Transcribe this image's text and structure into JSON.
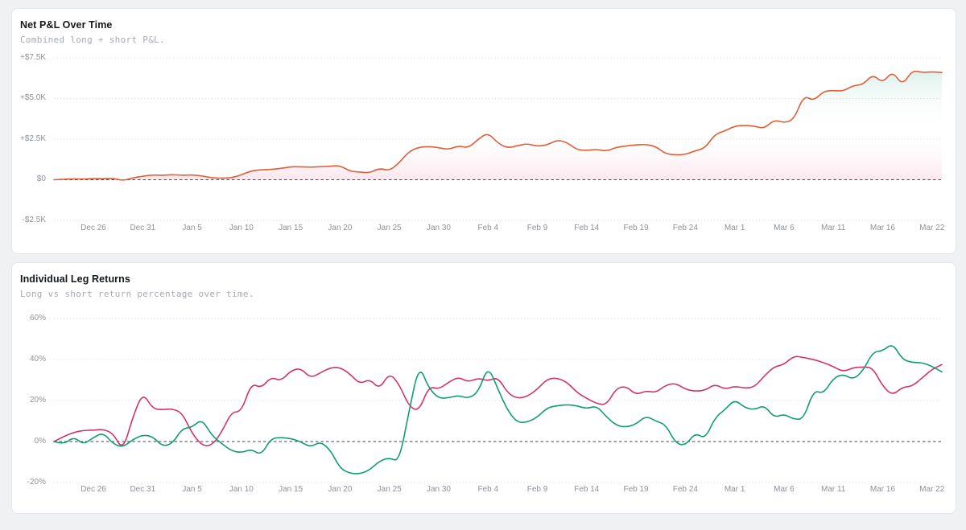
{
  "chart_data": [
    {
      "type": "area",
      "title": "Net P&L Over Time",
      "subtitle": "Combined long + short P&L.",
      "grid": "dotted-horizontal",
      "legend_position": "none",
      "zero_line": "dashed",
      "n_points": 91,
      "x_start": "Dec 22",
      "x_end": "Mar 23",
      "ylim": [
        -2500,
        7500
      ],
      "y_ticks": [
        {
          "label": "+$7.5K",
          "value": 7500
        },
        {
          "label": "+$5.0K",
          "value": 5000
        },
        {
          "label": "+$2.5K",
          "value": 2500
        },
        {
          "label": "$0",
          "value": 0
        },
        {
          "label": "-$2.5K",
          "value": -2500
        }
      ],
      "x_ticks": [
        {
          "label": "Dec 26",
          "index": 4
        },
        {
          "label": "Dec 31",
          "index": 9
        },
        {
          "label": "Jan 5",
          "index": 14
        },
        {
          "label": "Jan 10",
          "index": 19
        },
        {
          "label": "Jan 15",
          "index": 24
        },
        {
          "label": "Jan 20",
          "index": 29
        },
        {
          "label": "Jan 25",
          "index": 34
        },
        {
          "label": "Jan 30",
          "index": 39
        },
        {
          "label": "Feb 4",
          "index": 44
        },
        {
          "label": "Feb 9",
          "index": 49
        },
        {
          "label": "Feb 14",
          "index": 54
        },
        {
          "label": "Feb 19",
          "index": 59
        },
        {
          "label": "Feb 24",
          "index": 64
        },
        {
          "label": "Mar 1",
          "index": 69
        },
        {
          "label": "Mar 6",
          "index": 74
        },
        {
          "label": "Mar 11",
          "index": 79
        },
        {
          "label": "Mar 16",
          "index": 84
        },
        {
          "label": "Mar 22",
          "index": 89
        }
      ],
      "fill": {
        "top": "#0f9d70",
        "top_opacity": 0.14,
        "bottom": "#d6336c",
        "bottom_opacity": 0.12
      },
      "series": [
        {
          "name": "Net P&L",
          "unit": "USD",
          "color": "#e05f38",
          "values": [
            0,
            30,
            60,
            40,
            80,
            60,
            100,
            -60,
            120,
            220,
            300,
            260,
            320,
            270,
            300,
            240,
            120,
            100,
            120,
            300,
            550,
            620,
            630,
            700,
            800,
            800,
            770,
            800,
            830,
            880,
            520,
            480,
            420,
            720,
            550,
            1050,
            1750,
            2000,
            2050,
            1980,
            1850,
            2100,
            1950,
            2500,
            2900,
            2250,
            1950,
            2100,
            2230,
            2050,
            2150,
            2450,
            2300,
            1850,
            1800,
            1880,
            1750,
            2000,
            2080,
            2150,
            2180,
            2050,
            1600,
            1530,
            1550,
            1780,
            1950,
            2800,
            3000,
            3300,
            3350,
            3300,
            3150,
            3700,
            3500,
            3700,
            5200,
            4850,
            5450,
            5500,
            5450,
            5800,
            5850,
            6500,
            5950,
            6700,
            5800,
            6750,
            6600,
            6650,
            6600
          ]
        }
      ]
    },
    {
      "type": "line",
      "title": "Individual Leg Returns",
      "subtitle": "Long vs short return percentage over time.",
      "grid": "dotted-horizontal",
      "legend_position": "none",
      "zero_line": "dashed",
      "n_points": 91,
      "x_start": "Dec 22",
      "x_end": "Mar 23",
      "ylim": [
        -20,
        60
      ],
      "y_ticks": [
        {
          "label": "60%",
          "value": 60
        },
        {
          "label": "40%",
          "value": 40
        },
        {
          "label": "20%",
          "value": 20
        },
        {
          "label": "0%",
          "value": 0
        },
        {
          "label": "-20%",
          "value": -20
        }
      ],
      "x_ticks": [
        {
          "label": "Dec 26",
          "index": 4
        },
        {
          "label": "Dec 31",
          "index": 9
        },
        {
          "label": "Jan 5",
          "index": 14
        },
        {
          "label": "Jan 10",
          "index": 19
        },
        {
          "label": "Jan 15",
          "index": 24
        },
        {
          "label": "Jan 20",
          "index": 29
        },
        {
          "label": "Jan 25",
          "index": 34
        },
        {
          "label": "Jan 30",
          "index": 39
        },
        {
          "label": "Feb 4",
          "index": 44
        },
        {
          "label": "Feb 9",
          "index": 49
        },
        {
          "label": "Feb 14",
          "index": 54
        },
        {
          "label": "Feb 19",
          "index": 59
        },
        {
          "label": "Feb 24",
          "index": 64
        },
        {
          "label": "Mar 1",
          "index": 69
        },
        {
          "label": "Mar 6",
          "index": 74
        },
        {
          "label": "Mar 11",
          "index": 79
        },
        {
          "label": "Mar 16",
          "index": 84
        },
        {
          "label": "Mar 22",
          "index": 89
        }
      ],
      "series": [
        {
          "name": "Long",
          "unit": "percent",
          "color": "#d2336b",
          "values": [
            0,
            2.5,
            4.5,
            5.5,
            5.5,
            6,
            4,
            -4.5,
            12,
            24,
            16,
            15.5,
            16,
            14,
            4,
            -2,
            -2,
            4.5,
            14.5,
            14.5,
            28.5,
            26,
            31.5,
            29.5,
            34.5,
            35.8,
            31,
            33.5,
            36,
            36.2,
            33,
            28,
            30.5,
            25.5,
            33.5,
            28,
            17,
            14.8,
            27,
            25.5,
            29,
            31.5,
            29,
            31,
            29.5,
            31.5,
            23.5,
            21,
            22,
            25.5,
            30.5,
            31,
            29,
            24,
            21,
            18.5,
            17.8,
            26,
            27,
            22.8,
            24.8,
            23.8,
            27.5,
            28.5,
            25.5,
            24.5,
            25,
            28,
            25.5,
            27,
            26,
            26.5,
            32,
            36.5,
            37.5,
            41.8,
            41,
            40,
            38.5,
            36.5,
            34,
            36,
            36.4,
            36,
            27,
            22.5,
            26.5,
            27,
            31,
            35.2,
            37.5
          ]
        },
        {
          "name": "Short",
          "unit": "percent",
          "color": "#119d72",
          "values": [
            0,
            -1.5,
            2.4,
            -1.5,
            2,
            4.4,
            -1.2,
            -2.8,
            1,
            3.2,
            2.5,
            -2.4,
            -1,
            6.3,
            7,
            11,
            3,
            -1,
            -4.5,
            -5.5,
            -3.7,
            -6.7,
            1.5,
            2,
            1.5,
            0,
            -2.8,
            0,
            -4,
            -13,
            -15.5,
            -15.8,
            -13.9,
            -9.5,
            -7.9,
            -9.9,
            15,
            37.6,
            26,
            21,
            21.3,
            22.5,
            21,
            24,
            37,
            25.6,
            15,
            9.1,
            9.5,
            11.9,
            16.5,
            17.5,
            18,
            17.5,
            16,
            17.5,
            12,
            7.9,
            7,
            8.5,
            12.5,
            10,
            8.3,
            -0.8,
            -2,
            4.3,
            1.2,
            11.6,
            15.5,
            20.5,
            16.6,
            15.5,
            17.8,
            11.6,
            13.5,
            10.8,
            11,
            25.1,
            23.2,
            30.9,
            32.9,
            30.2,
            34.4,
            43.7,
            44.1,
            48,
            40,
            38.5,
            38.5,
            36.7,
            34
          ]
        }
      ]
    }
  ]
}
